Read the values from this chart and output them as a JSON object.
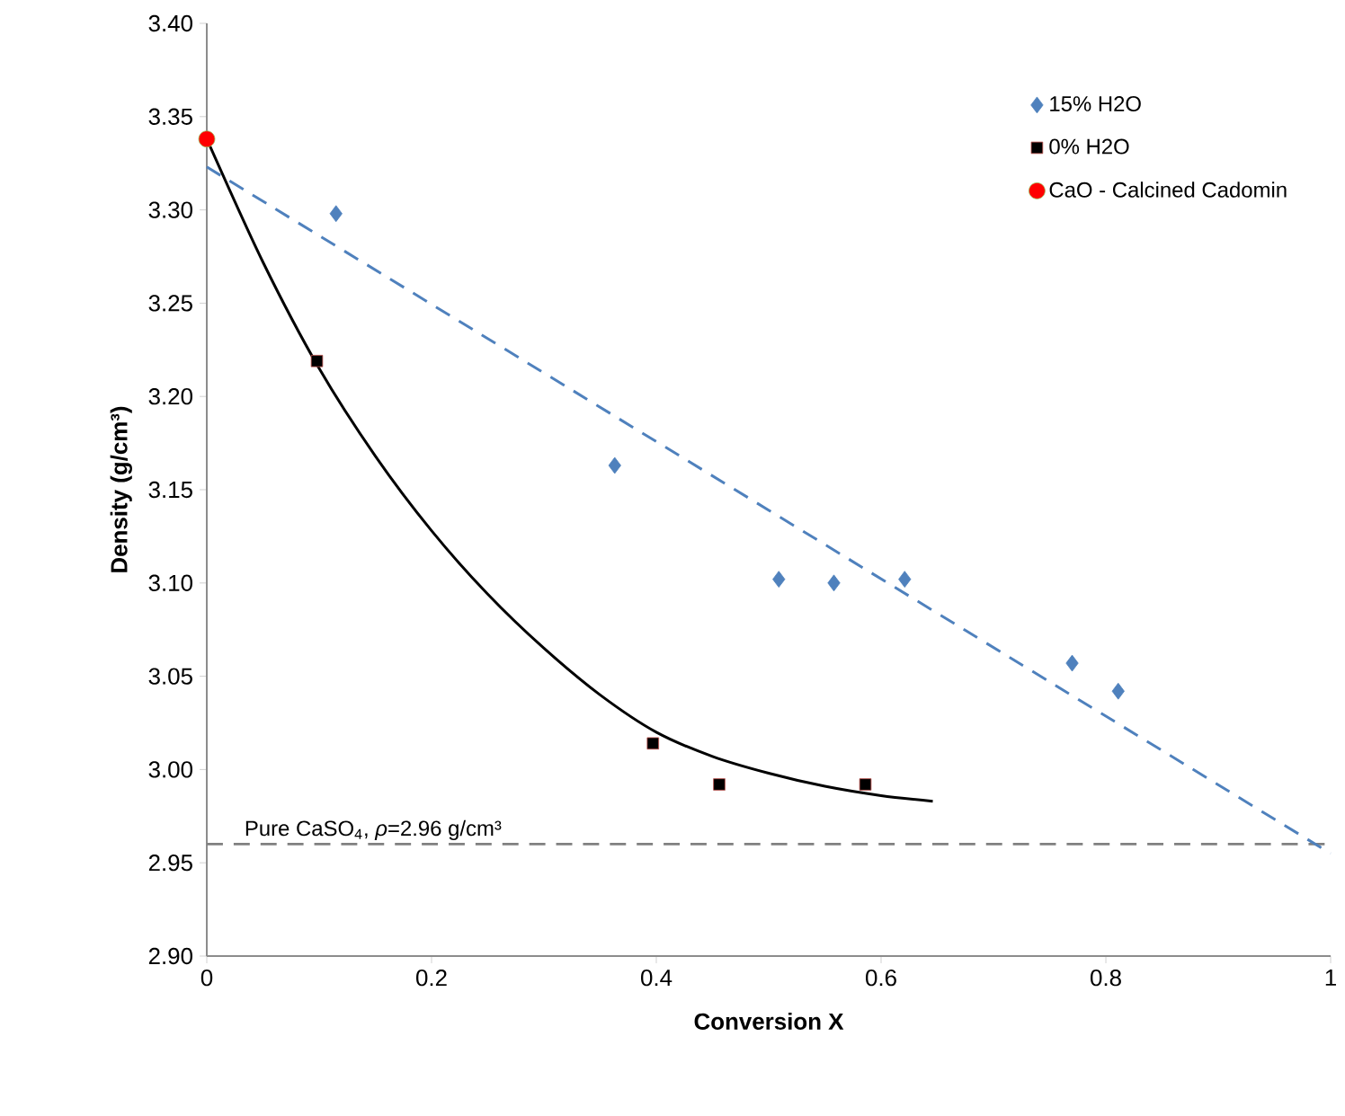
{
  "chart_data": {
    "type": "scatter",
    "xlabel": "Conversion X",
    "ylabel": "Density (g/cm³)",
    "xlim": [
      0,
      1
    ],
    "ylim": [
      2.9,
      3.4
    ],
    "xticks": [
      0,
      0.2,
      0.4,
      0.6,
      0.8,
      1
    ],
    "yticks": [
      {
        "value": 2.9,
        "label": "2.90"
      },
      {
        "value": 2.95,
        "label": "2.95"
      },
      {
        "value": 3.0,
        "label": "3.00"
      },
      {
        "value": 3.05,
        "label": "3.05"
      },
      {
        "value": 3.1,
        "label": "3.10"
      },
      {
        "value": 3.15,
        "label": "3.15"
      },
      {
        "value": 3.2,
        "label": "3.20"
      },
      {
        "value": 3.25,
        "label": "3.25"
      },
      {
        "value": 3.3,
        "label": "3.30"
      },
      {
        "value": 3.35,
        "label": "3.35"
      },
      {
        "value": 3.4,
        "label": "3.40"
      }
    ],
    "grid": false,
    "legend": "top right",
    "series": [
      {
        "name": "15% H2O",
        "color": "#4f81bd",
        "marker": "diamond",
        "x": [
          0.115,
          0.363,
          0.509,
          0.558,
          0.621,
          0.77,
          0.811
        ],
        "values": [
          3.298,
          3.163,
          3.102,
          3.1,
          3.102,
          3.057,
          3.042
        ]
      },
      {
        "name": "0% H2O",
        "color": "#000000",
        "marker": "square",
        "x": [
          0.098,
          0.397,
          0.456,
          0.586
        ],
        "values": [
          3.219,
          3.014,
          2.992,
          2.992
        ]
      },
      {
        "name": "CaO - Calcined Cadomin",
        "color": "#ff0000",
        "marker": "circle",
        "x": [
          0
        ],
        "values": [
          3.338
        ]
      },
      {
        "type": "line",
        "color": "#4f81bd",
        "line_style": "dashed",
        "marker": "none",
        "x": [
          0,
          1
        ],
        "values": [
          3.323,
          2.955
        ]
      },
      {
        "type": "line",
        "color": "#000000",
        "line_style": "solid",
        "marker": "none",
        "x": [
          0,
          0.05,
          0.1,
          0.15,
          0.2,
          0.25,
          0.3,
          0.35,
          0.4,
          0.45,
          0.5,
          0.55,
          0.6,
          0.646
        ],
        "values": [
          3.338,
          3.272,
          3.215,
          3.168,
          3.128,
          3.094,
          3.065,
          3.04,
          3.02,
          3.007,
          2.998,
          2.991,
          2.986,
          2.983
        ]
      }
    ],
    "ref_lines": [
      {
        "axis": "y",
        "value": 2.96,
        "label": "Pure CaSO$_{4}$, *ρ*=2.96 g/cm³",
        "color": "#808080",
        "line_style": "dashed"
      }
    ]
  }
}
